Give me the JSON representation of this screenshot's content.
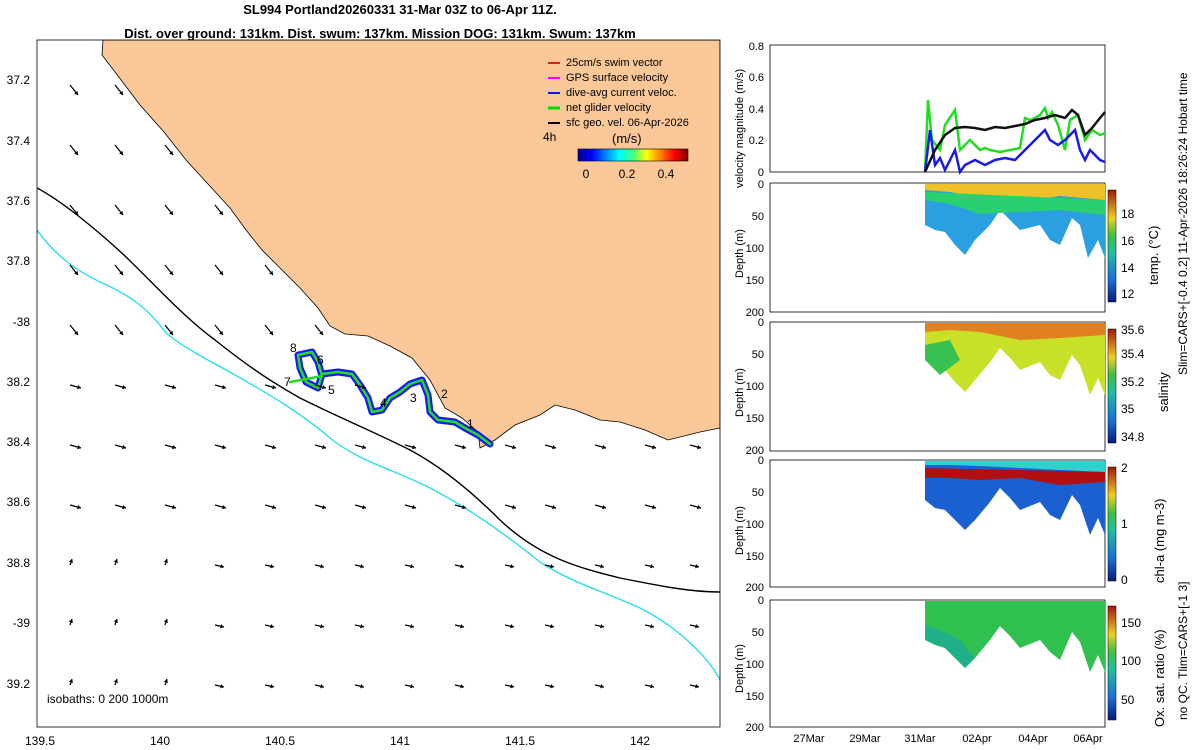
{
  "title": {
    "line1": "SL994 Portland20260331 31-Mar 03Z to 06-Apr 11Z.",
    "line2": "Dist. over ground: 131km. Dist. swum: 137km. Mission DOG: 131km. Swum: 137km"
  },
  "map": {
    "lat_ticks": [
      "37.2",
      "37.4",
      "37.6",
      "37.8",
      "-38",
      "38.2",
      "38.4",
      "38.6",
      "38.8",
      "-39",
      "39.2"
    ],
    "lon_ticks": [
      "139.5",
      "140",
      "140.5",
      "141",
      "141.5",
      "142"
    ],
    "isobaths_label": "isobaths: 0   200   1000m",
    "waypoints": [
      "1",
      "2",
      "3",
      "4",
      "5",
      "6",
      "7",
      "8"
    ],
    "legend": [
      {
        "label": "25cm/s swim vector",
        "color": "#e02020"
      },
      {
        "label": "GPS surface velocity",
        "color": "#ff00ff"
      },
      {
        "label": "dive-avg current veloc.",
        "color": "#1010ff"
      },
      {
        "label": "net glider velocity",
        "color": "#00dd00"
      },
      {
        "label": "sfc geo. vel. 06-Apr-2026",
        "color": "#000000"
      }
    ],
    "colorbar": {
      "scale_label": "4h",
      "unit": "(m/s)",
      "ticks": [
        "0",
        "0.2",
        "0.4"
      ],
      "range": [
        0,
        0.5
      ]
    },
    "colors": {
      "land": "#fac898",
      "sea": "#ffffff",
      "isobath_200": "#000000",
      "isobath_1000": "#28e0e8"
    }
  },
  "panels": {
    "x_ticks": [
      "27Mar",
      "29Mar",
      "31Mar",
      "02Apr",
      "04Apr",
      "06Apr"
    ],
    "velocity": {
      "ylabel": "velocity magnitude (m/s)",
      "y_ticks": [
        "0",
        "0.2",
        "0.4",
        "0.6",
        "0.8"
      ],
      "ylim": [
        0,
        0.8
      ]
    },
    "depth_ticks": [
      "0",
      "50",
      "100",
      "150",
      "200"
    ],
    "depth_label": "Depth (m)",
    "temp": {
      "cbar_label": "temp. (°C)",
      "cbar_ticks": [
        "18",
        "16",
        "14",
        "12"
      ]
    },
    "salinity": {
      "cbar_label": "salinity",
      "cbar_ticks": [
        "35.6",
        "35.4",
        "35.2",
        "35",
        "34.8"
      ]
    },
    "chla": {
      "cbar_label": "chl-a (mg m-3)",
      "cbar_ticks": [
        "2",
        "1",
        "0"
      ]
    },
    "oxygen": {
      "cbar_label": "Ox. sat. ratio (%)",
      "cbar_ticks": [
        "150",
        "100",
        "50"
      ]
    }
  },
  "side_note_1": "Slim=CARS+[-0.4 0.2] 11-Apr-2026 18:26:24 Hobart time",
  "side_note_2": "no QC. Tlim=CARS+[-1 3]"
}
